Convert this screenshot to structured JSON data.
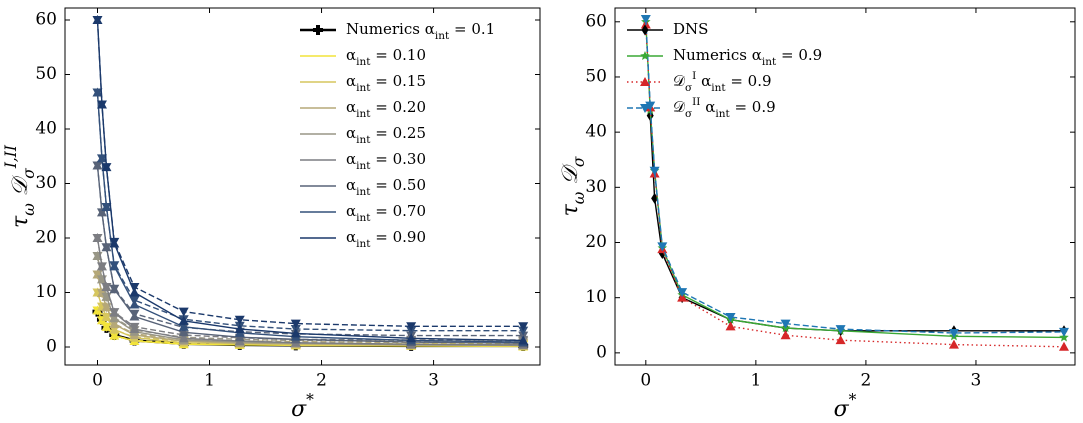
{
  "chart_data": [
    {
      "type": "line",
      "xlabel": [
        {
          "text": "σ"
        },
        {
          "text": "*",
          "sup": true
        }
      ],
      "ylabel": [
        {
          "text": "τ"
        },
        {
          "text": "ω",
          "sub": true
        },
        {
          "text": " 𝒟"
        },
        {
          "text": "σ",
          "sub": true
        },
        {
          "text": "I,II",
          "sup": true
        }
      ],
      "x": [
        0,
        0.04,
        0.08,
        0.15,
        0.33,
        0.77,
        1.27,
        1.77,
        2.8,
        3.8
      ],
      "xlim": [
        -0.29,
        3.95
      ],
      "ylim": [
        -3.3,
        62.2
      ],
      "xticks": [
        0,
        1,
        2,
        3
      ],
      "yticks": [
        0,
        10,
        20,
        30,
        40,
        50,
        60
      ],
      "legend": "upper right",
      "series": [
        {
          "name": [
            {
              "text": "Numerics "
            },
            {
              "text": "α"
            },
            {
              "text": "int",
              "sub": true
            },
            {
              "text": " = 0.1"
            }
          ],
          "color": "#000000",
          "marker": "plus",
          "linestyle": "solid",
          "values": [
            6.5,
            5,
            3.5,
            2.2,
            1.2,
            0.6,
            0.4,
            0.3,
            0.2,
            0.2
          ]
        },
        {
          "name": [
            {
              "text": "α"
            },
            {
              "text": "int",
              "sub": true
            },
            {
              "text": " = 0.10"
            }
          ],
          "color": "#f2e33a",
          "marker": "up",
          "legend_marker": false,
          "linestyle": "solid",
          "values": [
            6.7,
            4.9,
            3.7,
            2.1,
            1.1,
            0.5,
            0.4,
            0.3,
            0.2,
            0.1
          ]
        },
        {
          "color": "#f2e33a",
          "marker": "down",
          "linestyle": "dashed",
          "values": [
            6.7,
            4.9,
            3.7,
            2.1,
            1.2,
            0.7,
            0.6,
            0.5,
            0.4,
            0.4
          ]
        },
        {
          "name": [
            {
              "text": "α"
            },
            {
              "text": "int",
              "sub": true
            },
            {
              "text": " = 0.15"
            }
          ],
          "color": "#d6c65e",
          "marker": "up",
          "legend_marker": false,
          "linestyle": "solid",
          "values": [
            10,
            7.4,
            5.5,
            3.2,
            1.7,
            0.8,
            0.6,
            0.4,
            0.3,
            0.2
          ]
        },
        {
          "color": "#d6c65e",
          "marker": "down",
          "linestyle": "dashed",
          "values": [
            10,
            7.4,
            5.5,
            3.2,
            1.8,
            1.1,
            0.8,
            0.7,
            0.6,
            0.6
          ]
        },
        {
          "name": [
            {
              "text": "α"
            },
            {
              "text": "int",
              "sub": true
            },
            {
              "text": " = 0.20"
            }
          ],
          "color": "#b5a878",
          "marker": "up",
          "legend_marker": false,
          "linestyle": "solid",
          "values": [
            13.3,
            9.9,
            7.3,
            4.2,
            2.2,
            1.1,
            0.7,
            0.6,
            0.4,
            0.3
          ]
        },
        {
          "color": "#b5a878",
          "marker": "down",
          "linestyle": "dashed",
          "values": [
            13.3,
            9.9,
            7.3,
            4.3,
            2.4,
            1.4,
            1.1,
            1,
            0.8,
            0.8
          ]
        },
        {
          "name": [
            {
              "text": "α"
            },
            {
              "text": "int",
              "sub": true
            },
            {
              "text": " = 0.25"
            }
          ],
          "color": "#989686",
          "marker": "up",
          "legend_marker": false,
          "linestyle": "solid",
          "values": [
            16.7,
            12.4,
            9.2,
            5.3,
            2.8,
            1.3,
            0.9,
            0.7,
            0.4,
            0.3
          ]
        },
        {
          "color": "#989686",
          "marker": "down",
          "linestyle": "dashed",
          "values": [
            16.7,
            12.4,
            9.2,
            5.4,
            3.1,
            1.8,
            1.4,
            1.2,
            1.1,
            1.1
          ]
        },
        {
          "name": [
            {
              "text": "α"
            },
            {
              "text": "int",
              "sub": true
            },
            {
              "text": " = 0.30"
            }
          ],
          "color": "#7c7d82",
          "marker": "up",
          "legend_marker": false,
          "linestyle": "solid",
          "values": [
            20,
            14.8,
            11,
            6.3,
            3.3,
            1.6,
            1.1,
            0.8,
            0.5,
            0.4
          ]
        },
        {
          "color": "#7c7d82",
          "marker": "down",
          "linestyle": "dashed",
          "values": [
            20,
            14.8,
            11,
            6.4,
            3.7,
            2.2,
            1.7,
            1.4,
            1.3,
            1.3
          ]
        },
        {
          "name": [
            {
              "text": "α"
            },
            {
              "text": "int",
              "sub": true
            },
            {
              "text": " = 0.50"
            }
          ],
          "color": "#586378",
          "marker": "up",
          "legend_marker": false,
          "linestyle": "solid",
          "values": [
            33.3,
            24.7,
            18.3,
            10.6,
            5.6,
            2.7,
            1.8,
            1.4,
            0.9,
            0.7
          ]
        },
        {
          "color": "#586378",
          "marker": "down",
          "linestyle": "dashed",
          "values": [
            33.3,
            24.7,
            18.3,
            10.7,
            6.1,
            3.6,
            2.8,
            2.4,
            2.1,
            2.1
          ]
        },
        {
          "name": [
            {
              "text": "α"
            },
            {
              "text": "int",
              "sub": true
            },
            {
              "text": " = 0.70"
            }
          ],
          "color": "#33507a",
          "marker": "up",
          "legend_marker": false,
          "linestyle": "solid",
          "values": [
            46.7,
            34.6,
            25.7,
            14.8,
            7.8,
            3.7,
            2.6,
            1.9,
            1.2,
            0.9
          ]
        },
        {
          "color": "#33507a",
          "marker": "down",
          "linestyle": "dashed",
          "values": [
            46.7,
            34.6,
            25.7,
            15,
            8.6,
            5.1,
            3.9,
            3.3,
            3,
            3
          ]
        },
        {
          "name": [
            {
              "text": "α"
            },
            {
              "text": "int",
              "sub": true
            },
            {
              "text": " = 0.90"
            }
          ],
          "color": "#1b396b",
          "marker": "up",
          "legend_marker": false,
          "linestyle": "solid",
          "values": [
            60,
            44.5,
            33,
            19,
            10,
            4.8,
            3.3,
            2.5,
            1.6,
            1.2
          ]
        },
        {
          "color": "#1b396b",
          "marker": "down",
          "linestyle": "dashed",
          "values": [
            60,
            44.5,
            33,
            19.3,
            11,
            6.5,
            5,
            4.3,
            3.8,
            3.8
          ]
        }
      ]
    },
    {
      "type": "line",
      "xlabel": [
        {
          "text": "σ"
        },
        {
          "text": "*",
          "sup": true
        }
      ],
      "ylabel": [
        {
          "text": "τ"
        },
        {
          "text": "ω",
          "sub": true
        },
        {
          "text": " 𝒟"
        },
        {
          "text": "σ",
          "sub": true
        }
      ],
      "x": [
        0,
        0.04,
        0.08,
        0.15,
        0.33,
        0.77,
        1.27,
        1.77,
        2.8,
        3.8
      ],
      "xlim": [
        -0.28,
        3.9
      ],
      "ylim": [
        -2.2,
        62.5
      ],
      "xticks": [
        0,
        1,
        2,
        3
      ],
      "yticks": [
        0,
        10,
        20,
        30,
        40,
        50,
        60
      ],
      "legend": "upper left",
      "series": [
        {
          "name": [
            {
              "text": "DNS"
            }
          ],
          "color": "#000000",
          "marker": "diamond",
          "linestyle": "solid",
          "values": [
            null,
            43,
            28,
            18,
            10,
            6,
            4.5,
            4,
            4,
            4
          ]
        },
        {
          "name": [
            {
              "text": "Numerics "
            },
            {
              "text": "α"
            },
            {
              "text": "int",
              "sub": true
            },
            {
              "text": " = 0.9"
            }
          ],
          "color": "#3aa935",
          "marker": "star",
          "linestyle": "solid",
          "values": [
            60,
            44,
            33,
            19,
            10.5,
            6,
            4.5,
            4,
            3,
            2.8
          ]
        },
        {
          "name": [
            {
              "text": "𝒟"
            },
            {
              "text": "σ",
              "sub": true
            },
            {
              "text": "I",
              "sup": true
            },
            {
              "text": " α"
            },
            {
              "text": "int",
              "sub": true
            },
            {
              "text": " = 0.9"
            }
          ],
          "color": "#d62728",
          "marker": "up",
          "linestyle": "dotted",
          "values": [
            59.5,
            44.5,
            32.5,
            18.8,
            10,
            4.8,
            3.2,
            2.3,
            1.5,
            1.1
          ]
        },
        {
          "name": [
            {
              "text": "𝒟"
            },
            {
              "text": "σ",
              "sub": true
            },
            {
              "text": "II",
              "sup": true
            },
            {
              "text": " α"
            },
            {
              "text": "int",
              "sub": true
            },
            {
              "text": " = 0.9"
            }
          ],
          "color": "#1f77b4",
          "marker": "down",
          "linestyle": "dashed",
          "values": [
            60.5,
            44.8,
            33,
            19.3,
            11,
            6.5,
            5.3,
            4.3,
            3.6,
            3.8
          ]
        }
      ]
    }
  ]
}
